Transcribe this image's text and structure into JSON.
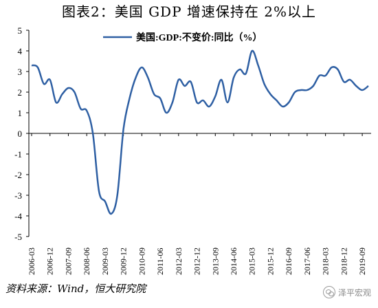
{
  "header": {
    "title": "图表2：美国 GDP 增速保持在 2%以上"
  },
  "footer": {
    "source": "资料来源：Wind，恒大研究院",
    "watermark": "泽平宏观"
  },
  "colors": {
    "line": "#2E5FA3",
    "axis": "#000000"
  },
  "chart_data": {
    "type": "line",
    "title": "图表2：美国 GDP 增速保持在 2%以上",
    "ylim": [
      -5,
      5
    ],
    "yticks": [
      5,
      4,
      3,
      2,
      1,
      0,
      -1,
      -2,
      -3,
      -4,
      -5
    ],
    "grid": false,
    "legend_position": "top",
    "x": [
      "2006-03",
      "2006-06",
      "2006-09",
      "2006-12",
      "2007-03",
      "2007-06",
      "2007-09",
      "2007-12",
      "2008-03",
      "2008-06",
      "2008-09",
      "2008-12",
      "2009-03",
      "2009-06",
      "2009-09",
      "2009-12",
      "2010-03",
      "2010-06",
      "2010-09",
      "2010-12",
      "2011-03",
      "2011-06",
      "2011-09",
      "2011-12",
      "2012-03",
      "2012-06",
      "2012-09",
      "2012-12",
      "2013-03",
      "2013-06",
      "2013-09",
      "2013-12",
      "2014-03",
      "2014-06",
      "2014-09",
      "2014-12",
      "2015-03",
      "2015-06",
      "2015-09",
      "2015-12",
      "2016-03",
      "2016-06",
      "2016-09",
      "2016-12",
      "2017-03",
      "2017-06",
      "2017-09",
      "2017-12",
      "2018-03",
      "2018-06",
      "2018-09",
      "2018-12",
      "2019-03",
      "2019-06",
      "2019-09",
      "2019-12"
    ],
    "xtick_labels": [
      "2006-03",
      "2006-12",
      "2007-09",
      "2008-06",
      "2009-03",
      "2009-12",
      "2010-09",
      "2011-06",
      "2012-03",
      "2012-12",
      "2013-09",
      "2014-06",
      "2015-03",
      "2015-12",
      "2016-09",
      "2017-06",
      "2018-03",
      "2018-12",
      "2019-09"
    ],
    "series": [
      {
        "name": "美国:GDP:不变价:同比（%）",
        "values": [
          3.3,
          3.2,
          2.4,
          2.6,
          1.5,
          1.9,
          2.2,
          2.0,
          1.2,
          1.1,
          0.0,
          -2.8,
          -3.3,
          -3.9,
          -3.0,
          0.2,
          1.7,
          2.7,
          3.2,
          2.7,
          1.9,
          1.7,
          1.0,
          1.5,
          2.6,
          2.3,
          2.5,
          1.5,
          1.6,
          1.3,
          1.8,
          2.6,
          1.5,
          2.7,
          3.1,
          2.9,
          4.0,
          3.3,
          2.4,
          1.9,
          1.6,
          1.3,
          1.5,
          2.0,
          2.1,
          2.1,
          2.3,
          2.8,
          2.8,
          3.2,
          3.1,
          2.5,
          2.6,
          2.3,
          2.1,
          2.3
        ]
      }
    ]
  }
}
